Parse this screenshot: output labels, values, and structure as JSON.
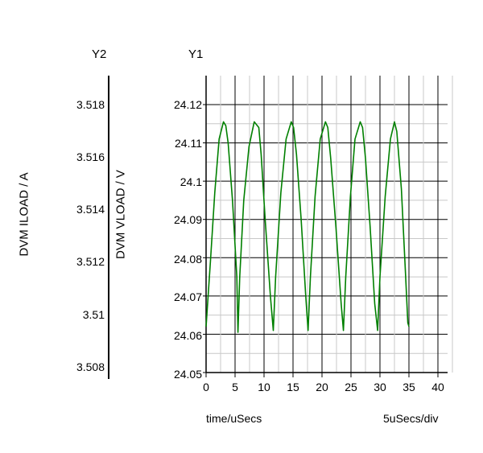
{
  "chart_data": {
    "type": "line",
    "y1_axis": {
      "name": "Y1",
      "label": "DVM VLOAD / V",
      "ylim": [
        24.05,
        24.125
      ],
      "ticks": [
        24.12,
        24.11,
        24.1,
        24.09,
        24.08,
        24.07,
        24.06,
        24.05
      ],
      "tick_labels": [
        "24.12",
        "24.11",
        "24.1",
        "24.09",
        "24.08",
        "24.07",
        "24.06",
        "24.05"
      ]
    },
    "y2_axis": {
      "name": "Y2",
      "label": "DVM ILOAD / A",
      "ylim": [
        3.5075,
        3.519
      ],
      "ticks": [
        3.518,
        3.516,
        3.514,
        3.512,
        3.51,
        3.508
      ],
      "tick_labels": [
        "3.518",
        "3.516",
        "3.514",
        "3.512",
        "3.51",
        "3.508"
      ]
    },
    "x_axis": {
      "label": "time/uSecs",
      "scale_label": "5uSecs/div",
      "xlim": [
        0,
        40
      ],
      "ticks": [
        0,
        5,
        10,
        15,
        20,
        25,
        30,
        35,
        40
      ],
      "tick_labels": [
        "0",
        "5",
        "10",
        "15",
        "20",
        "25",
        "30",
        "35",
        "40"
      ]
    },
    "grid": true,
    "series": [
      {
        "axis": "y1",
        "color": "#008000",
        "x": [
          0,
          0.75,
          1.5,
          2.25,
          3.0,
          3.4,
          3.8,
          4.55,
          5.3,
          5.5,
          5.8,
          6.5,
          7.4,
          8.3,
          9.1,
          9.5,
          10.2,
          11.1,
          11.6,
          12.0,
          12.9,
          13.8,
          14.7,
          15.1,
          15.6,
          16.4,
          17.2,
          17.6,
          18.0,
          18.8,
          19.7,
          20.6,
          21.0,
          21.5,
          22.4,
          23.3,
          23.7,
          24.1,
          24.9,
          25.7,
          26.6,
          27.0,
          27.5,
          28.3,
          29.1,
          29.6,
          30.0,
          30.9,
          31.8,
          32.5,
          32.9,
          33.7,
          34.4,
          34.8,
          35.0
        ],
        "y": [
          24.062,
          24.079,
          24.097,
          24.111,
          24.1155,
          24.1145,
          24.11,
          24.095,
          24.075,
          24.0605,
          24.075,
          24.095,
          24.109,
          24.1155,
          24.114,
          24.107,
          24.09,
          24.07,
          24.061,
          24.075,
          24.097,
          24.111,
          24.1155,
          24.114,
          24.107,
          24.09,
          24.07,
          24.061,
          24.075,
          24.096,
          24.111,
          24.1155,
          24.114,
          24.106,
          24.088,
          24.068,
          24.061,
          24.075,
          24.096,
          24.111,
          24.1155,
          24.114,
          24.106,
          24.088,
          24.068,
          24.061,
          24.075,
          24.096,
          24.111,
          24.1155,
          24.113,
          24.098,
          24.076,
          24.063,
          24.062
        ]
      }
    ]
  }
}
